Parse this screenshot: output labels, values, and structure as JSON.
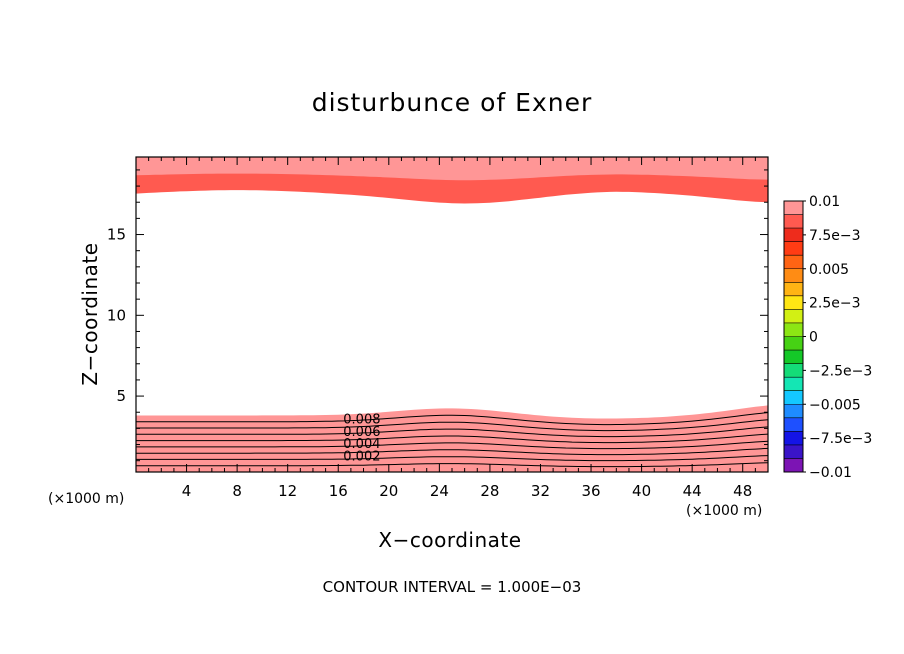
{
  "chart_data": {
    "type": "contour",
    "title": "disturbunce of Exner",
    "xlabel": "X−coordinate",
    "ylabel": "Z−coordinate",
    "x_unit_label": "(×1000 m)",
    "y_unit_label": "(×1000 m)",
    "xlim": [
      0,
      50
    ],
    "ylim": [
      0.3,
      19.8
    ],
    "x_ticks": [
      4,
      8,
      12,
      16,
      20,
      24,
      28,
      32,
      36,
      40,
      44,
      48
    ],
    "y_ticks": [
      5,
      10,
      15
    ],
    "contour_interval_text": "CONTOUR INTERVAL = 1.000E−03",
    "contour_labels": [
      "0.008",
      "0.006",
      "0.004",
      "0.002"
    ],
    "colorbar": {
      "min": -0.01,
      "max": 0.01,
      "tick_labels": [
        "0.01",
        "7.5e−3",
        "0.005",
        "2.5e−3",
        "0",
        "−2.5e−3",
        "−0.005",
        "−7.5e−3",
        "−0.01"
      ],
      "colors": [
        "#7c14b4",
        "#3a14c8",
        "#1414e6",
        "#1e50ff",
        "#1e8cff",
        "#14c8ff",
        "#14e6b4",
        "#14dc78",
        "#14c828",
        "#46d214",
        "#8ce614",
        "#d2f014",
        "#ffe614",
        "#ffb414",
        "#ff8c14",
        "#ff6414",
        "#ff3c14",
        "#ee2c1c",
        "#ff5a50",
        "#ff9696"
      ]
    },
    "fields": {
      "bottom_layer": {
        "z_range": [
          0.3,
          3.8
        ],
        "values_low_to_high": [
          0.002,
          0.003,
          0.004,
          0.005,
          0.006,
          0.007,
          0.008,
          0.009,
          0.01
        ]
      },
      "top_layer": {
        "z_range": [
          17.3,
          19.8
        ],
        "values_low_to_high": [
          0.009,
          0.01
        ]
      }
    }
  }
}
